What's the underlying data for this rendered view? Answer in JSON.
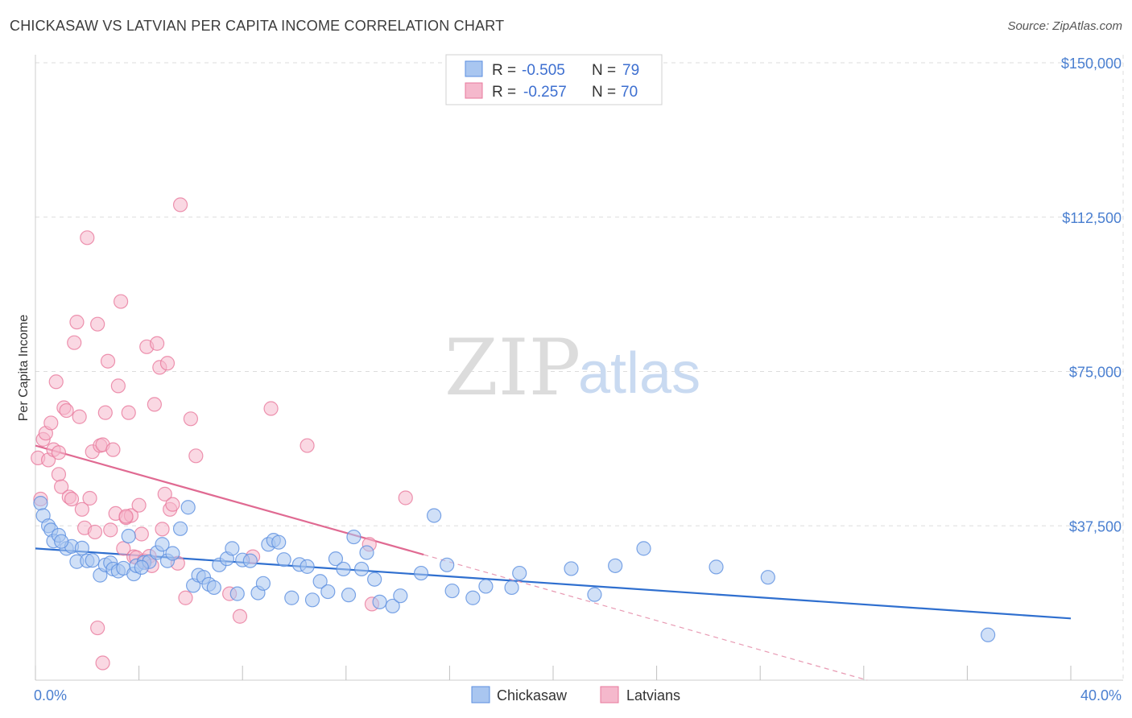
{
  "title": "CHICKASAW VS LATVIAN PER CAPITA INCOME CORRELATION CHART",
  "source": "Source: ZipAtlas.com",
  "watermark": {
    "zip": "ZIP",
    "atlas": "atlas"
  },
  "colors": {
    "blue": "#5b8fe0",
    "blue_fill": "#a9c6f0",
    "pink": "#e8799c",
    "pink_fill": "#f5b8cc",
    "grid": "#dddddd",
    "axis_label": "#4a7fd0"
  },
  "legend": {
    "rows": [
      {
        "r_label": "R =",
        "r_value": "-0.505",
        "n_label": "N =",
        "n_value": "79"
      },
      {
        "r_label": "R =",
        "r_value": "-0.257",
        "n_label": "N =",
        "n_value": "70"
      }
    ]
  },
  "bottom_legend": [
    "Chickasaw",
    "Latvians"
  ],
  "chart_data": {
    "type": "scatter",
    "title": "CHICKASAW VS LATVIAN PER CAPITA INCOME CORRELATION CHART",
    "xlabel": "",
    "ylabel": "Per Capita Income",
    "xlim": [
      0,
      40
    ],
    "ylim": [
      0,
      150000
    ],
    "x_tick_labels": [
      "0.0%",
      "40.0%"
    ],
    "y_tick_labels": [
      "$37,500",
      "$75,000",
      "$112,500",
      "$150,000"
    ],
    "y_ticks": [
      37500,
      75000,
      112500,
      150000
    ],
    "grid": true,
    "legend_position": "top-center",
    "series": [
      {
        "name": "Chickasaw",
        "r": -0.505,
        "n": 79,
        "trend": {
          "x0": 0,
          "y0": 32000,
          "x1": 40,
          "y1": 15000
        },
        "points": [
          [
            0.2,
            43000
          ],
          [
            0.3,
            40000
          ],
          [
            0.5,
            37500
          ],
          [
            0.6,
            36500
          ],
          [
            0.7,
            33800
          ],
          [
            0.9,
            35200
          ],
          [
            1.2,
            32000
          ],
          [
            1.4,
            32500
          ],
          [
            1.6,
            28800
          ],
          [
            1.8,
            32100
          ],
          [
            2.0,
            29000
          ],
          [
            2.2,
            29100
          ],
          [
            2.5,
            25500
          ],
          [
            2.7,
            28000
          ],
          [
            2.9,
            28500
          ],
          [
            3.0,
            27000
          ],
          [
            3.2,
            26500
          ],
          [
            3.4,
            27200
          ],
          [
            3.6,
            35000
          ],
          [
            3.8,
            25800
          ],
          [
            3.9,
            27800
          ],
          [
            4.2,
            28600
          ],
          [
            4.4,
            28800
          ],
          [
            4.7,
            31000
          ],
          [
            4.9,
            33000
          ],
          [
            5.1,
            29000
          ],
          [
            5.3,
            30800
          ],
          [
            5.6,
            36800
          ],
          [
            5.9,
            42000
          ],
          [
            6.1,
            23000
          ],
          [
            6.3,
            25500
          ],
          [
            6.5,
            25000
          ],
          [
            6.7,
            23300
          ],
          [
            6.9,
            22500
          ],
          [
            7.1,
            28000
          ],
          [
            7.4,
            29500
          ],
          [
            7.6,
            32000
          ],
          [
            7.8,
            21000
          ],
          [
            8.0,
            29200
          ],
          [
            8.3,
            29000
          ],
          [
            8.6,
            21200
          ],
          [
            8.8,
            23500
          ],
          [
            9.0,
            33000
          ],
          [
            9.2,
            34000
          ],
          [
            9.4,
            33500
          ],
          [
            9.6,
            29300
          ],
          [
            9.9,
            20000
          ],
          [
            10.2,
            28100
          ],
          [
            10.5,
            27600
          ],
          [
            10.7,
            19500
          ],
          [
            11.0,
            24000
          ],
          [
            11.3,
            21500
          ],
          [
            11.6,
            29500
          ],
          [
            11.9,
            27000
          ],
          [
            12.1,
            20700
          ],
          [
            12.3,
            34800
          ],
          [
            12.6,
            27000
          ],
          [
            12.8,
            31000
          ],
          [
            13.1,
            24500
          ],
          [
            13.3,
            19000
          ],
          [
            13.8,
            18000
          ],
          [
            14.1,
            20500
          ],
          [
            14.9,
            26000
          ],
          [
            15.4,
            40000
          ],
          [
            15.9,
            28000
          ],
          [
            16.1,
            21700
          ],
          [
            16.9,
            20000
          ],
          [
            17.4,
            22800
          ],
          [
            18.4,
            22500
          ],
          [
            18.7,
            26000
          ],
          [
            20.7,
            27100
          ],
          [
            21.6,
            20800
          ],
          [
            22.4,
            27800
          ],
          [
            23.5,
            32000
          ],
          [
            26.3,
            27500
          ],
          [
            28.3,
            25000
          ],
          [
            36.8,
            11000
          ],
          [
            1.0,
            33700
          ],
          [
            4.1,
            27400
          ]
        ]
      },
      {
        "name": "Latvians",
        "r": -0.257,
        "n": 70,
        "trend": {
          "x0": 0,
          "y0": 57000,
          "x1": 15.0,
          "y1": 30500
        },
        "trend_extension": {
          "x0": 15.0,
          "y0": 30500,
          "x1": 40,
          "y1": -14000
        },
        "points": [
          [
            0.1,
            54000
          ],
          [
            0.2,
            44000
          ],
          [
            0.3,
            58500
          ],
          [
            0.4,
            60000
          ],
          [
            0.5,
            53500
          ],
          [
            0.6,
            62500
          ],
          [
            0.7,
            56000
          ],
          [
            0.8,
            72500
          ],
          [
            0.9,
            50000
          ],
          [
            1.0,
            47000
          ],
          [
            1.1,
            66200
          ],
          [
            1.2,
            65500
          ],
          [
            1.3,
            44500
          ],
          [
            1.4,
            44000
          ],
          [
            1.5,
            82000
          ],
          [
            1.6,
            87000
          ],
          [
            1.7,
            64000
          ],
          [
            1.8,
            41500
          ],
          [
            1.9,
            37000
          ],
          [
            2.0,
            107500
          ],
          [
            2.1,
            44200
          ],
          [
            2.2,
            55500
          ],
          [
            2.3,
            36000
          ],
          [
            2.4,
            86500
          ],
          [
            2.5,
            57000
          ],
          [
            2.6,
            57200
          ],
          [
            2.7,
            65000
          ],
          [
            2.8,
            77500
          ],
          [
            2.9,
            36500
          ],
          [
            3.0,
            56000
          ],
          [
            3.1,
            40500
          ],
          [
            3.2,
            71500
          ],
          [
            3.3,
            92000
          ],
          [
            3.4,
            32000
          ],
          [
            3.5,
            39500
          ],
          [
            3.6,
            65000
          ],
          [
            3.7,
            40000
          ],
          [
            3.8,
            30000
          ],
          [
            3.9,
            29800
          ],
          [
            4.0,
            42500
          ],
          [
            4.1,
            35500
          ],
          [
            4.2,
            29000
          ],
          [
            4.3,
            81000
          ],
          [
            4.4,
            30100
          ],
          [
            4.5,
            27800
          ],
          [
            4.6,
            67000
          ],
          [
            4.7,
            81800
          ],
          [
            4.8,
            76000
          ],
          [
            4.9,
            36700
          ],
          [
            5.0,
            45200
          ],
          [
            5.1,
            77000
          ],
          [
            5.2,
            41500
          ],
          [
            5.3,
            42700
          ],
          [
            5.6,
            115500
          ],
          [
            5.8,
            20000
          ],
          [
            6.0,
            63500
          ],
          [
            6.2,
            54500
          ],
          [
            7.5,
            21000
          ],
          [
            7.9,
            15500
          ],
          [
            8.4,
            30000
          ],
          [
            9.1,
            66000
          ],
          [
            10.5,
            57000
          ],
          [
            12.9,
            33000
          ],
          [
            13.0,
            18500
          ],
          [
            14.3,
            44300
          ],
          [
            2.4,
            12700
          ],
          [
            2.6,
            4200
          ],
          [
            5.5,
            28400
          ],
          [
            3.5,
            39800
          ],
          [
            0.9,
            55300
          ]
        ]
      }
    ]
  }
}
